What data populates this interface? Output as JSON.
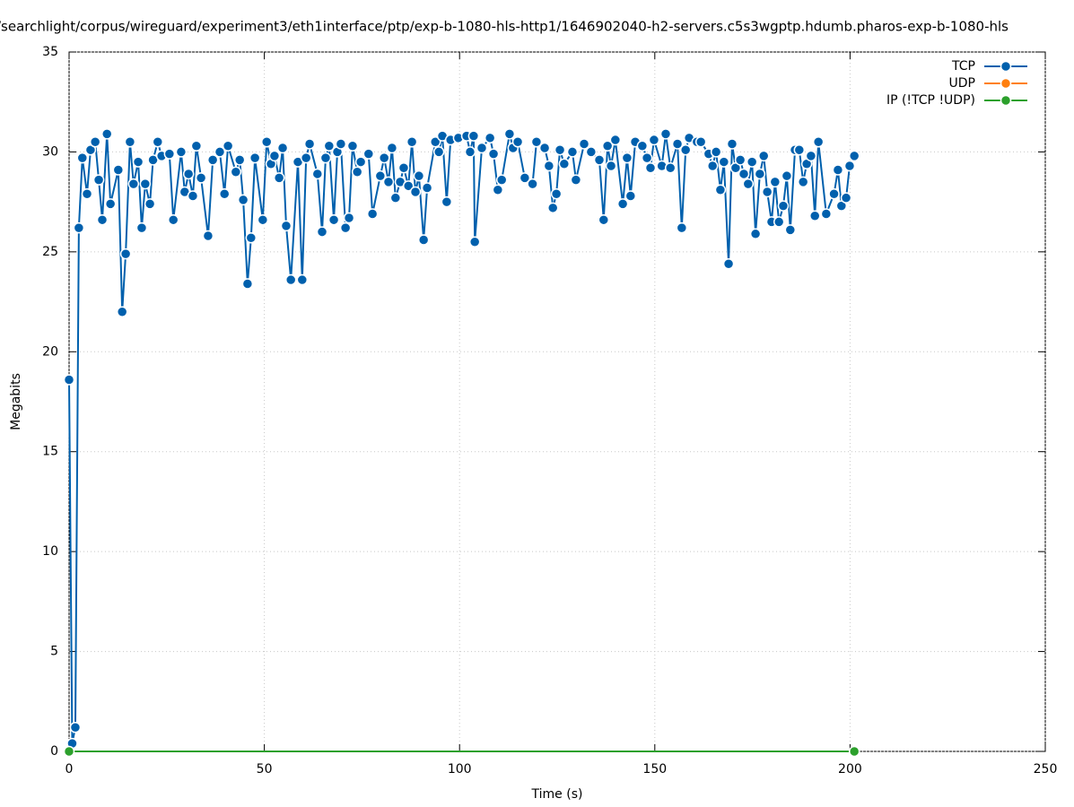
{
  "chart_data": {
    "type": "line",
    "title": "/searchlight/corpus/wireguard/experiment3/eth1interface/ptp/exp-b-1080-hls-http1/1646902040-h2-servers.c5s3wgptp.hdumb.pharos-exp-b-1080-hls",
    "xlabel": "Time (s)",
    "ylabel": "Megabits",
    "xlim": [
      0,
      250
    ],
    "xticks": [
      0,
      50,
      100,
      150,
      200,
      250
    ],
    "ylim": [
      0,
      35
    ],
    "yticks": [
      0,
      5,
      10,
      15,
      20,
      25,
      30,
      35
    ],
    "grid": true,
    "legend": "top-right",
    "series": [
      {
        "name": "TCP",
        "color": "#0060ad",
        "x": [
          0,
          0.8,
          1.6,
          2.5,
          3.4,
          4.6,
          5.5,
          6.7,
          7.6,
          8.5,
          9.7,
          10.6,
          12.6,
          13.6,
          14.5,
          15.6,
          16.5,
          17.7,
          18.6,
          19.5,
          20.7,
          21.5,
          22.7,
          23.7,
          25.7,
          26.7,
          28.7,
          29.6,
          30.6,
          31.7,
          32.6,
          33.8,
          35.6,
          36.8,
          38.6,
          39.8,
          40.7,
          42.7,
          43.7,
          44.6,
          45.7,
          46.6,
          47.6,
          49.6,
          50.6,
          51.7,
          52.6,
          53.8,
          54.7,
          55.6,
          56.8,
          58.6,
          59.7,
          60.7,
          61.6,
          63.6,
          64.8,
          65.7,
          66.6,
          67.8,
          68.7,
          69.6,
          70.8,
          71.7,
          72.6,
          73.8,
          74.7,
          76.7,
          77.7,
          79.7,
          80.7,
          81.8,
          82.7,
          83.6,
          84.8,
          85.7,
          86.9,
          87.8,
          88.7,
          89.6,
          90.8,
          91.7,
          93.8,
          94.7,
          95.6,
          96.7,
          97.7,
          99.7,
          101.8,
          102.7,
          103.6,
          103.9,
          105.7,
          107.8,
          108.7,
          109.8,
          110.8,
          112.8,
          113.7,
          114.9,
          116.7,
          118.7,
          119.7,
          121.8,
          122.9,
          123.9,
          124.8,
          125.7,
          126.8,
          128.9,
          129.8,
          131.9,
          133.7,
          135.8,
          136.9,
          137.9,
          138.8,
          139.9,
          141.8,
          142.9,
          143.8,
          145.0,
          146.8,
          148.0,
          148.9,
          149.8,
          151.8,
          152.8,
          154.0,
          155.8,
          156.9,
          157.9,
          158.8,
          160.8,
          161.8,
          163.8,
          164.8,
          165.7,
          166.8,
          167.7,
          168.9,
          169.8,
          170.7,
          171.9,
          172.8,
          173.9,
          174.9,
          175.8,
          176.9,
          177.9,
          178.8,
          179.9,
          180.8,
          181.8,
          182.9,
          183.8,
          184.7,
          185.9,
          187.0,
          188.0,
          188.9,
          190.0,
          191.0,
          191.9,
          193.9,
          195.9,
          196.9,
          197.8,
          199.0,
          199.9,
          201.1
        ],
        "values": [
          18.6,
          0.4,
          1.2,
          26.2,
          29.7,
          27.9,
          30.1,
          30.5,
          28.6,
          26.6,
          30.9,
          27.4,
          29.1,
          22.0,
          24.9,
          30.5,
          28.4,
          29.5,
          26.2,
          28.4,
          27.4,
          29.6,
          30.5,
          29.8,
          29.9,
          26.6,
          30.0,
          28.0,
          28.9,
          27.8,
          30.3,
          28.7,
          25.8,
          29.6,
          30.0,
          27.9,
          30.3,
          29.0,
          29.6,
          27.6,
          23.4,
          25.7,
          29.7,
          26.6,
          30.5,
          29.4,
          29.8,
          28.7,
          30.2,
          26.3,
          23.6,
          29.5,
          23.6,
          29.7,
          30.4,
          28.9,
          26.0,
          29.7,
          30.3,
          26.6,
          30.0,
          30.4,
          26.2,
          26.7,
          30.3,
          29.0,
          29.5,
          29.9,
          26.9,
          28.8,
          29.7,
          28.5,
          30.2,
          27.7,
          28.5,
          29.2,
          28.3,
          30.5,
          28.0,
          28.8,
          25.6,
          28.2,
          30.5,
          30.0,
          30.8,
          27.5,
          30.6,
          30.7,
          30.8,
          30.0,
          30.8,
          25.5,
          30.2,
          30.7,
          29.9,
          28.1,
          28.6,
          30.9,
          30.2,
          30.5,
          28.7,
          28.4,
          30.5,
          30.2,
          29.3,
          27.2,
          27.9,
          30.1,
          29.4,
          30.0,
          28.6,
          30.4,
          30.0,
          29.6,
          26.6,
          30.3,
          29.3,
          30.6,
          27.4,
          29.7,
          27.8,
          30.5,
          30.3,
          29.7,
          29.2,
          30.6,
          29.3,
          30.9,
          29.2,
          30.4,
          26.2,
          30.1,
          30.7,
          30.5,
          30.5,
          29.9,
          29.3,
          30.0,
          28.1,
          29.5,
          24.4,
          30.4,
          29.2,
          29.6,
          28.9,
          28.4,
          29.5,
          25.9,
          28.9,
          29.8,
          28.0,
          26.5,
          28.5,
          26.5,
          27.3,
          28.8,
          26.1,
          30.1,
          30.1,
          28.5,
          29.4,
          29.8,
          26.8,
          30.5,
          26.9,
          27.9,
          29.1,
          27.3,
          27.7,
          29.3,
          29.8
        ]
      },
      {
        "name": "UDP",
        "color": "#ff7f0e",
        "x": [],
        "values": []
      },
      {
        "name": "IP (!TCP  !UDP)",
        "color": "#2ca02c",
        "x": [
          0,
          201.1
        ],
        "values": [
          0,
          0
        ]
      }
    ]
  }
}
